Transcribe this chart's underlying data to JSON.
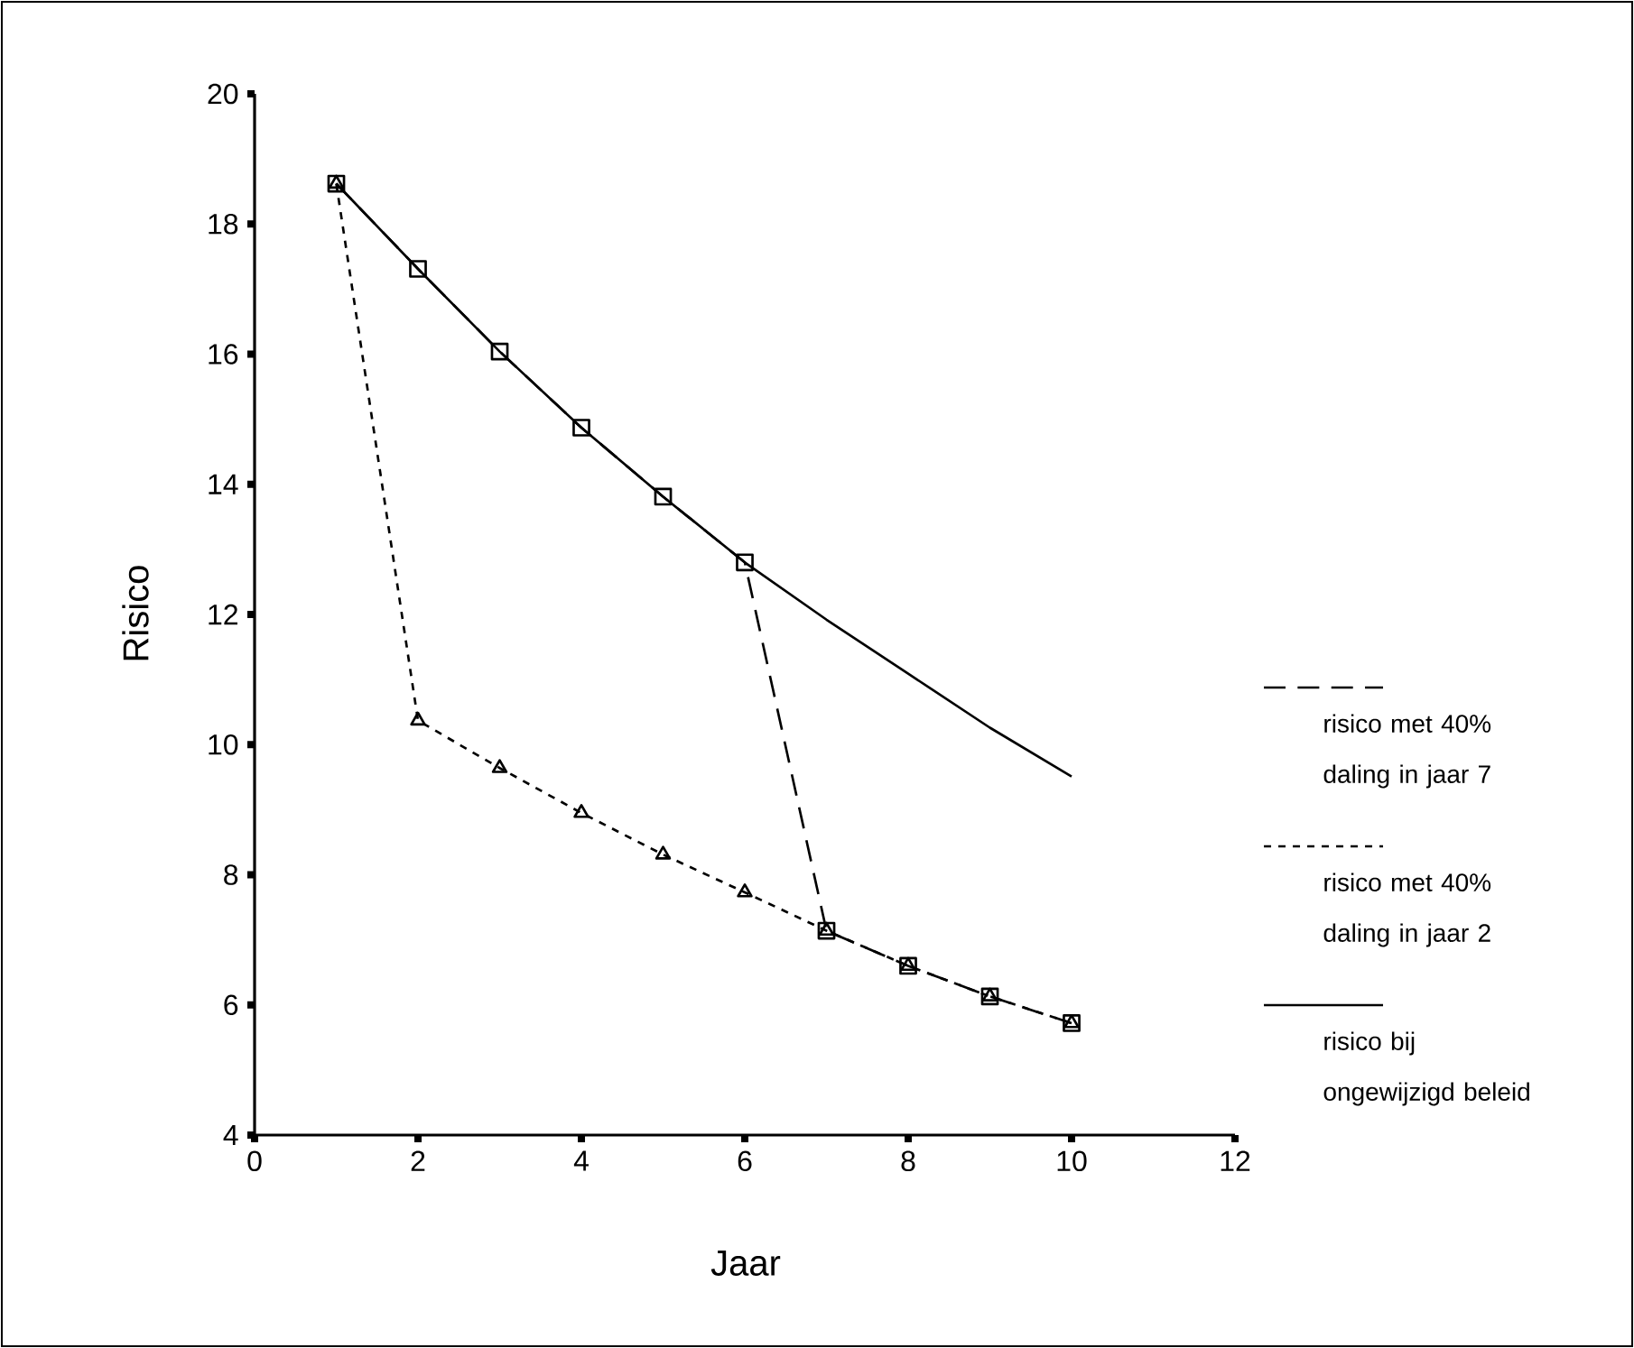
{
  "chart_data": {
    "type": "line",
    "xlabel": "Jaar",
    "ylabel": "Risico",
    "x": [
      1,
      2,
      3,
      4,
      5,
      6,
      7,
      8,
      9,
      10
    ],
    "xlim": [
      0,
      12
    ],
    "xticks": [
      0,
      2,
      4,
      6,
      8,
      10,
      12
    ],
    "ylim": [
      4,
      20
    ],
    "yticks": [
      4,
      6,
      8,
      10,
      12,
      14,
      16,
      18,
      20
    ],
    "grid": false,
    "legend": "right",
    "series": [
      {
        "name": "risico met 40% daling in jaar 7",
        "color": "#000000",
        "marker": "square",
        "line_style": "dashed",
        "values": [
          18.62,
          17.31,
          16.04,
          14.87,
          13.81,
          12.8,
          7.14,
          6.6,
          6.13,
          5.72
        ]
      },
      {
        "name": "risico met 40% daling in jaar 2",
        "color": "#000000",
        "marker": "triangle",
        "line_style": "dotted",
        "values": [
          18.62,
          10.37,
          9.64,
          8.95,
          8.31,
          7.73,
          7.14,
          6.6,
          6.13,
          5.72
        ]
      },
      {
        "name": "risico bij ongewijzigd beleid",
        "color": "#000000",
        "marker": "none",
        "line_style": "solid",
        "values": [
          18.62,
          17.31,
          16.04,
          14.87,
          13.81,
          12.8,
          11.92,
          11.09,
          10.26,
          9.51
        ]
      }
    ]
  }
}
